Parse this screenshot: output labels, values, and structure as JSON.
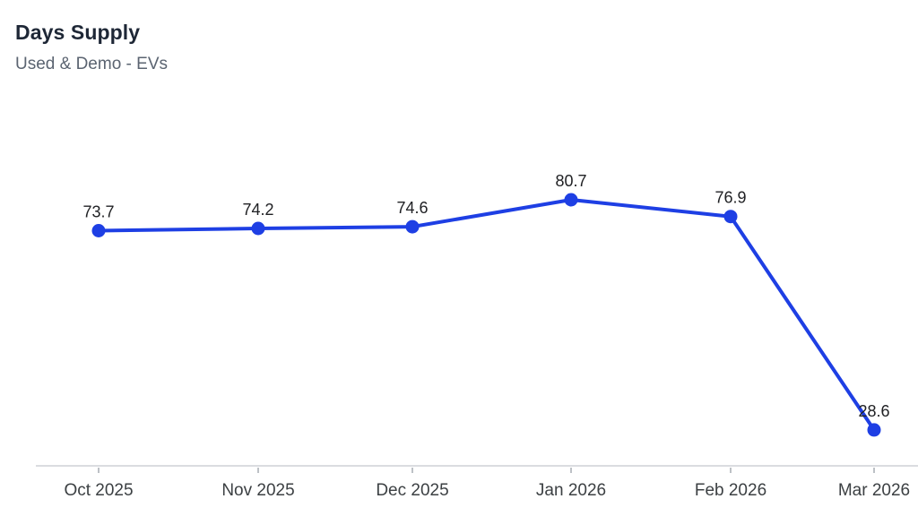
{
  "header": {
    "title": "Days Supply",
    "subtitle": "Used & Demo - EVs"
  },
  "chart_data": {
    "type": "line",
    "title": "Days Supply",
    "subtitle": "Used & Demo - EVs",
    "categories": [
      "Oct 2025",
      "Nov 2025",
      "Dec 2025",
      "Jan 2026",
      "Feb 2026",
      "Mar 2026"
    ],
    "series": [
      {
        "name": "Days Supply",
        "values": [
          73.7,
          74.2,
          74.6,
          80.7,
          76.9,
          28.6
        ]
      }
    ],
    "data_labels": [
      "73.7",
      "74.2",
      "74.6",
      "80.7",
      "76.9",
      "28.6"
    ],
    "xlabel": "",
    "ylabel": "",
    "ylim": [
      20,
      85
    ],
    "grid": false,
    "legend": "none",
    "colors": {
      "line": "#1e3fe4",
      "point": "#1e3fe4",
      "value_label": "#202124",
      "axis_line": "#dadce0",
      "tick_mark": "#bdc1c6",
      "tick_label": "#3c4043",
      "background": "#ffffff"
    }
  }
}
